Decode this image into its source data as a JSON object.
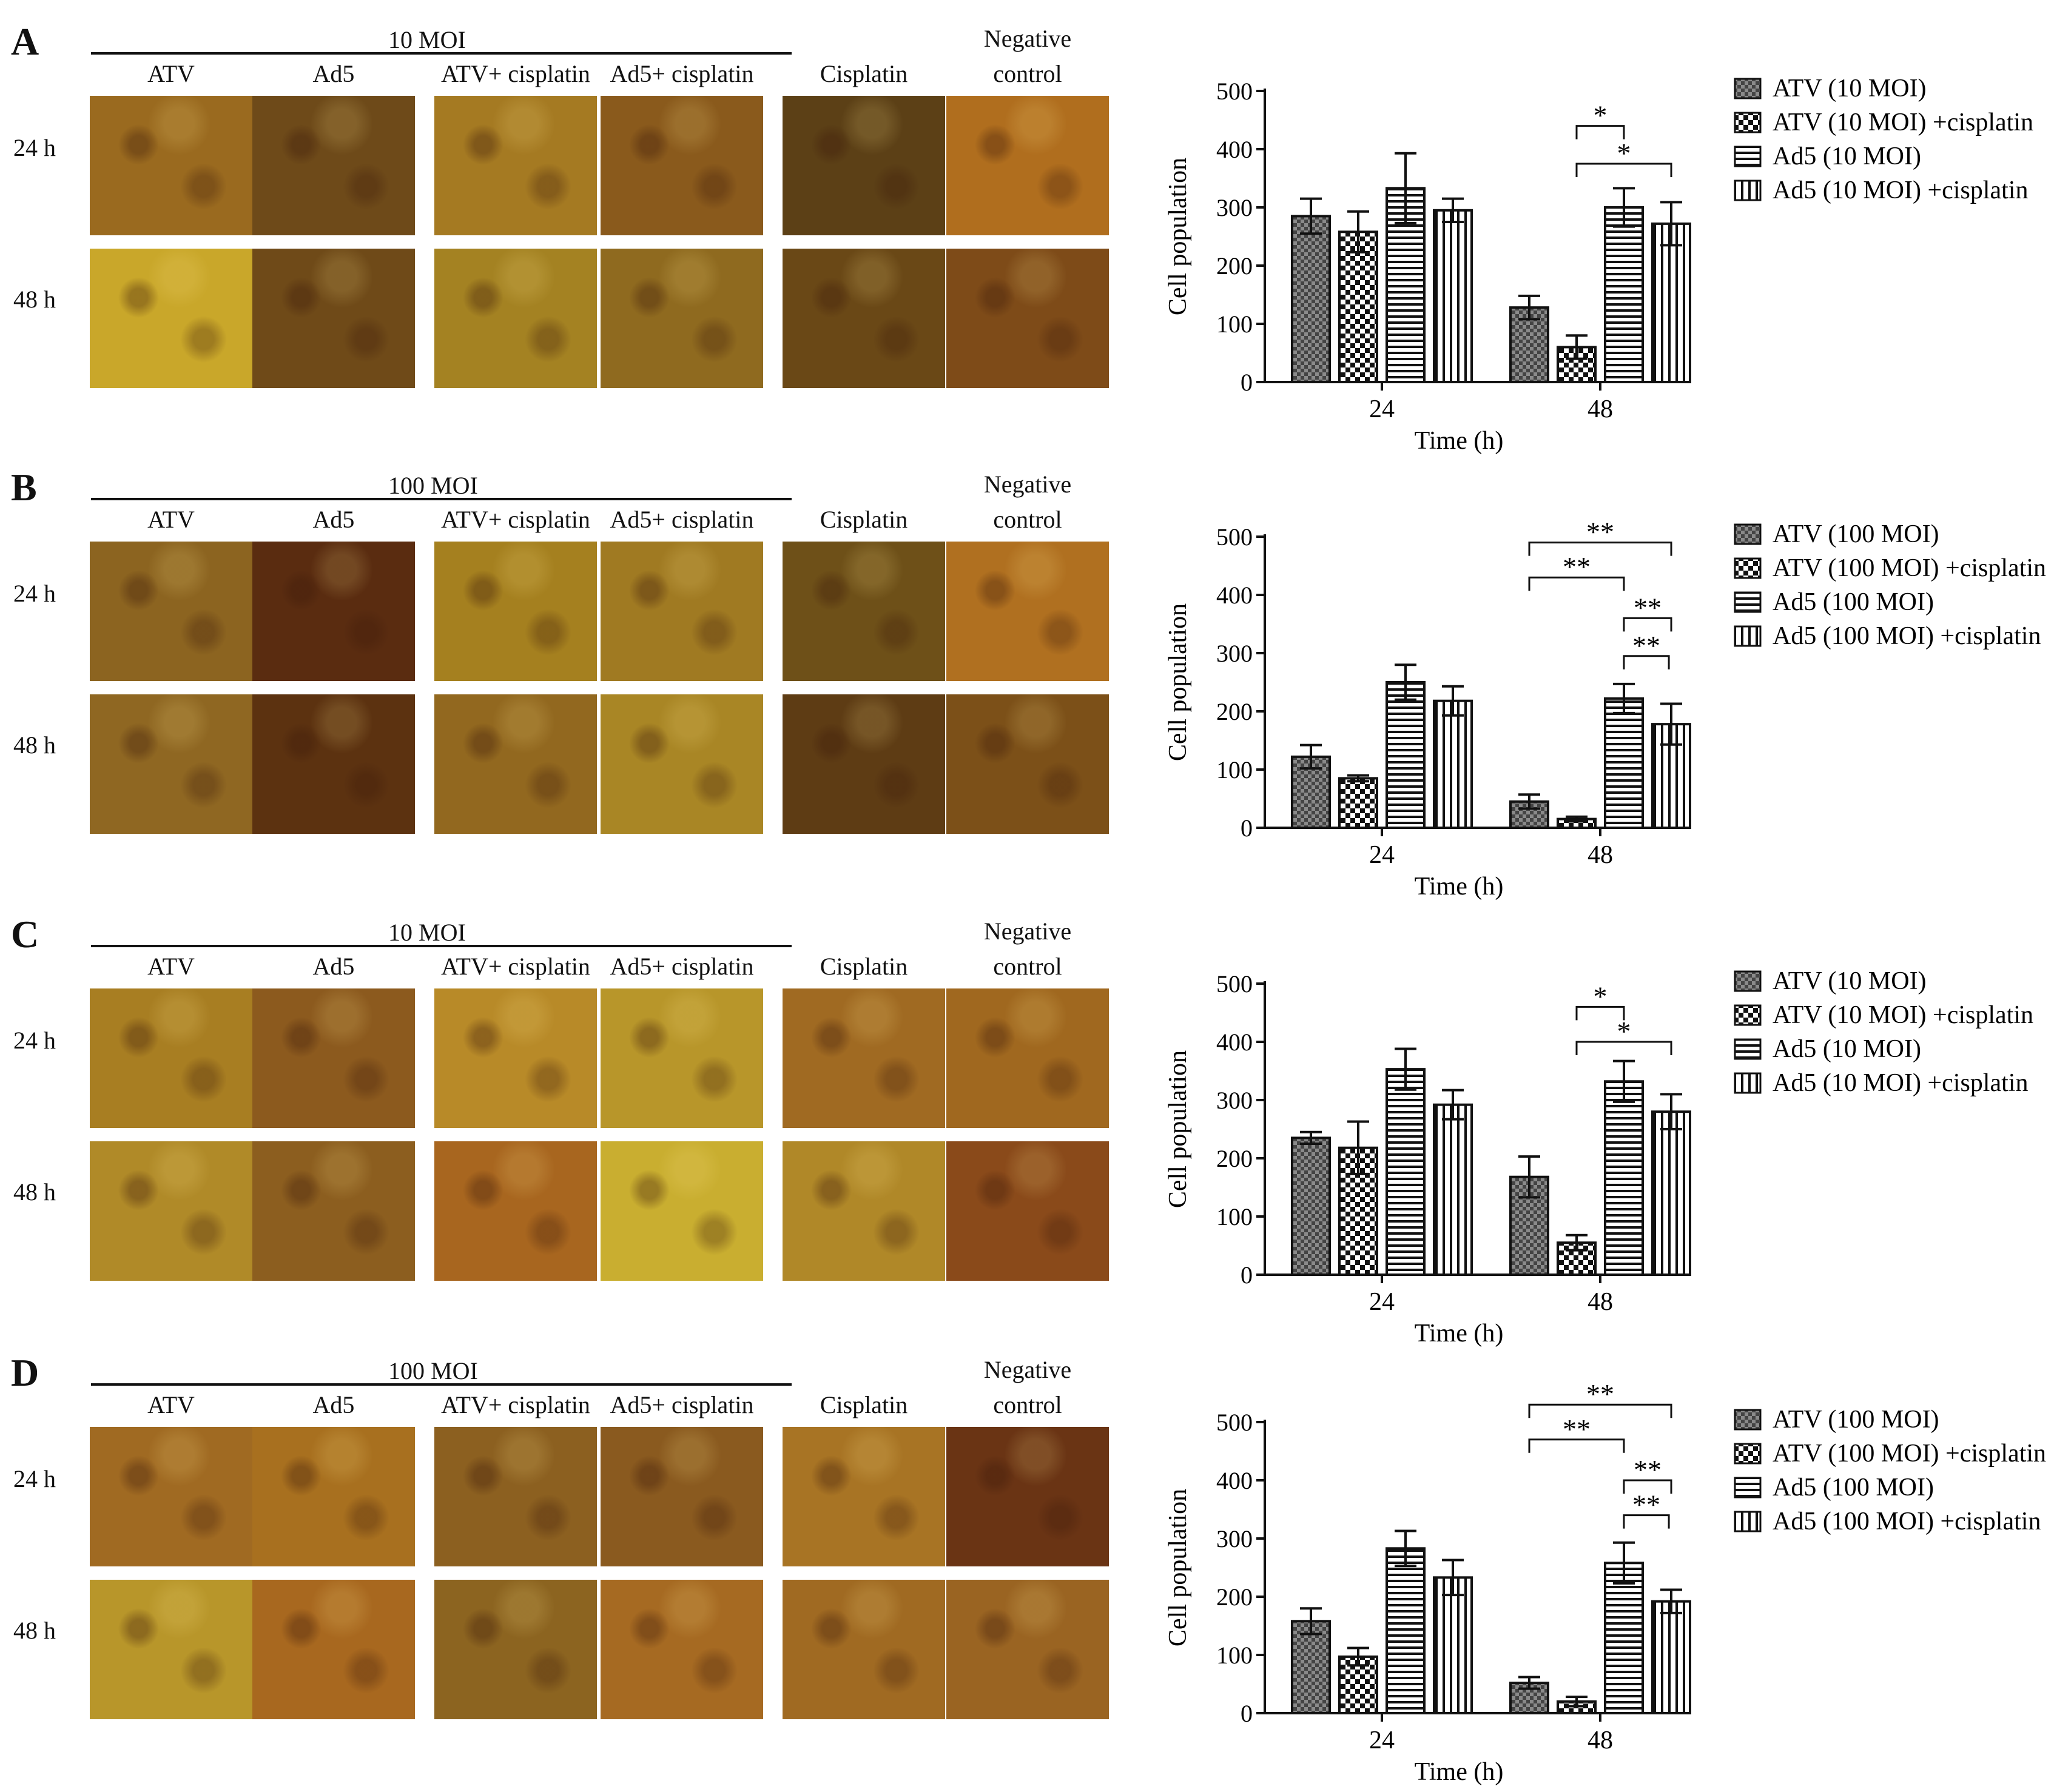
{
  "columns": [
    "ATV",
    "Ad5",
    "ATV+ cisplatin",
    "Ad5+ cisplatin",
    "Cisplatin"
  ],
  "negative_control": [
    "Negative",
    "control"
  ],
  "rows": [
    "24 h",
    "48 h"
  ],
  "colors": {
    "bars_stroke": "#111111",
    "bar_fill": "#ffffff"
  },
  "panels": [
    {
      "label": "A",
      "moi": "10 MOI",
      "cells": [
        [
          "#9a6a1f",
          "#6e4a19",
          "#a57a22",
          "#8a5a1c",
          "#5c4016",
          "#b06e1e"
        ],
        [
          "#c9a72a",
          "#6f4a18",
          "#a48222",
          "#8f6a1f",
          "#6a4816",
          "#7e4b18"
        ]
      ],
      "chart_data": {
        "type": "bar",
        "categories": [
          "24",
          "48"
        ],
        "xlabel": "Time (h)",
        "ylabel": "Cell population",
        "ylim": [
          0,
          500
        ],
        "yticks": [
          0,
          100,
          200,
          300,
          400,
          500
        ],
        "series": [
          {
            "name": "ATV (10 MOI)",
            "pattern": "grid",
            "values": [
              285,
              128
            ],
            "err": [
              30,
              20
            ]
          },
          {
            "name": "ATV (10 MOI) +cisplatin",
            "pattern": "check",
            "values": [
              258,
              60
            ],
            "err": [
              35,
              20
            ]
          },
          {
            "name": "Ad5 (10 MOI)",
            "pattern": "hstripe",
            "values": [
              333,
              300
            ],
            "err": [
              60,
              33
            ]
          },
          {
            "name": "Ad5 (10 MOI) +cisplatin",
            "pattern": "vstripe",
            "values": [
              295,
              272
            ],
            "err": [
              20,
              37
            ]
          }
        ],
        "significance": [
          {
            "group": 1,
            "from": 2,
            "to": 3,
            "level": 440,
            "label": "*"
          },
          {
            "group": 1,
            "from": 2,
            "to": 4,
            "level": 375,
            "label": "*"
          }
        ]
      }
    },
    {
      "label": "B",
      "moi": "100 MOI",
      "cells": [
        [
          "#8c6420",
          "#5a2c10",
          "#a5801f",
          "#a07a22",
          "#6e5018",
          "#b07020"
        ],
        [
          "#8f6722",
          "#5c3210",
          "#92681f",
          "#a98625",
          "#5e3c14",
          "#7c5018"
        ]
      ],
      "chart_data": {
        "type": "bar",
        "categories": [
          "24",
          "48"
        ],
        "xlabel": "Time (h)",
        "ylabel": "Cell population",
        "ylim": [
          0,
          500
        ],
        "yticks": [
          0,
          100,
          200,
          300,
          400,
          500
        ],
        "series": [
          {
            "name": "ATV (100 MOI)",
            "pattern": "grid",
            "values": [
              122,
              45
            ],
            "err": [
              20,
              12
            ]
          },
          {
            "name": "ATV (100 MOI) +cisplatin",
            "pattern": "check",
            "values": [
              85,
              15
            ],
            "err": [
              5,
              4
            ]
          },
          {
            "name": "Ad5 (100 MOI)",
            "pattern": "hstripe",
            "values": [
              250,
              222
            ],
            "err": [
              30,
              25
            ]
          },
          {
            "name": "Ad5 (100 MOI) +cisplatin",
            "pattern": "vstripe",
            "values": [
              218,
              178
            ],
            "err": [
              25,
              35
            ]
          }
        ],
        "significance": [
          {
            "group": 1,
            "from": 1,
            "to": 4,
            "level": 490,
            "label": "**"
          },
          {
            "group": 1,
            "from": 1,
            "to": 3,
            "level": 430,
            "label": "**"
          },
          {
            "group": 1,
            "from": 3,
            "to": 4,
            "level": 360,
            "label": "**"
          },
          {
            "group": 1,
            "from": 3,
            "to": 3.95,
            "level": 295,
            "label": "**"
          }
        ]
      }
    },
    {
      "label": "C",
      "moi": "10 MOI",
      "cells": [
        [
          "#a87e22",
          "#8c5a1e",
          "#b88a28",
          "#b8962a",
          "#a06a22",
          "#a0681f"
        ],
        [
          "#b08a28",
          "#8c5e1f",
          "#a8661f",
          "#c9ae30",
          "#b08828",
          "#8a4a1a"
        ]
      ],
      "chart_data": {
        "type": "bar",
        "categories": [
          "24",
          "48"
        ],
        "xlabel": "Time (h)",
        "ylabel": "Cell population",
        "ylim": [
          0,
          500
        ],
        "yticks": [
          0,
          100,
          200,
          300,
          400,
          500
        ],
        "series": [
          {
            "name": "ATV (10 MOI)",
            "pattern": "grid",
            "values": [
              235,
              168
            ],
            "err": [
              10,
              35
            ]
          },
          {
            "name": "ATV (10 MOI) +cisplatin",
            "pattern": "check",
            "values": [
              218,
              55
            ],
            "err": [
              45,
              13
            ]
          },
          {
            "name": "Ad5 (10 MOI)",
            "pattern": "hstripe",
            "values": [
              353,
              332
            ],
            "err": [
              35,
              35
            ]
          },
          {
            "name": "Ad5 (10 MOI) +cisplatin",
            "pattern": "vstripe",
            "values": [
              292,
              280
            ],
            "err": [
              25,
              30
            ]
          }
        ],
        "significance": [
          {
            "group": 1,
            "from": 2,
            "to": 3,
            "level": 460,
            "label": "*"
          },
          {
            "group": 1,
            "from": 2,
            "to": 4,
            "level": 400,
            "label": "*"
          }
        ]
      }
    },
    {
      "label": "D",
      "moi": "100 MOI",
      "cells": [
        [
          "#a06a22",
          "#a8701f",
          "#8c6020",
          "#8a5a1f",
          "#a87424",
          "#6a3414"
        ],
        [
          "#b8962a",
          "#a8681f",
          "#8c6420",
          "#a66a22",
          "#a06a22",
          "#9a6422"
        ]
      ],
      "chart_data": {
        "type": "bar",
        "categories": [
          "24",
          "48"
        ],
        "xlabel": "Time (h)",
        "ylabel": "Cell population",
        "ylim": [
          0,
          500
        ],
        "yticks": [
          0,
          100,
          200,
          300,
          400,
          500
        ],
        "series": [
          {
            "name": "ATV (100 MOI)",
            "pattern": "grid",
            "values": [
              158,
              52
            ],
            "err": [
              22,
              10
            ]
          },
          {
            "name": "ATV (100 MOI) +cisplatin",
            "pattern": "check",
            "values": [
              97,
              20
            ],
            "err": [
              15,
              8
            ]
          },
          {
            "name": "Ad5 (100 MOI)",
            "pattern": "hstripe",
            "values": [
              283,
              258
            ],
            "err": [
              30,
              35
            ]
          },
          {
            "name": "Ad5 (100 MOI) +cisplatin",
            "pattern": "vstripe",
            "values": [
              233,
              192
            ],
            "err": [
              30,
              20
            ]
          }
        ],
        "significance": [
          {
            "group": 1,
            "from": 1,
            "to": 4,
            "level": 530,
            "label": "**"
          },
          {
            "group": 1,
            "from": 1,
            "to": 3,
            "level": 470,
            "label": "**"
          },
          {
            "group": 1,
            "from": 3,
            "to": 4,
            "level": 400,
            "label": "**"
          },
          {
            "group": 1,
            "from": 3,
            "to": 3.95,
            "level": 340,
            "label": "**"
          }
        ]
      }
    }
  ]
}
